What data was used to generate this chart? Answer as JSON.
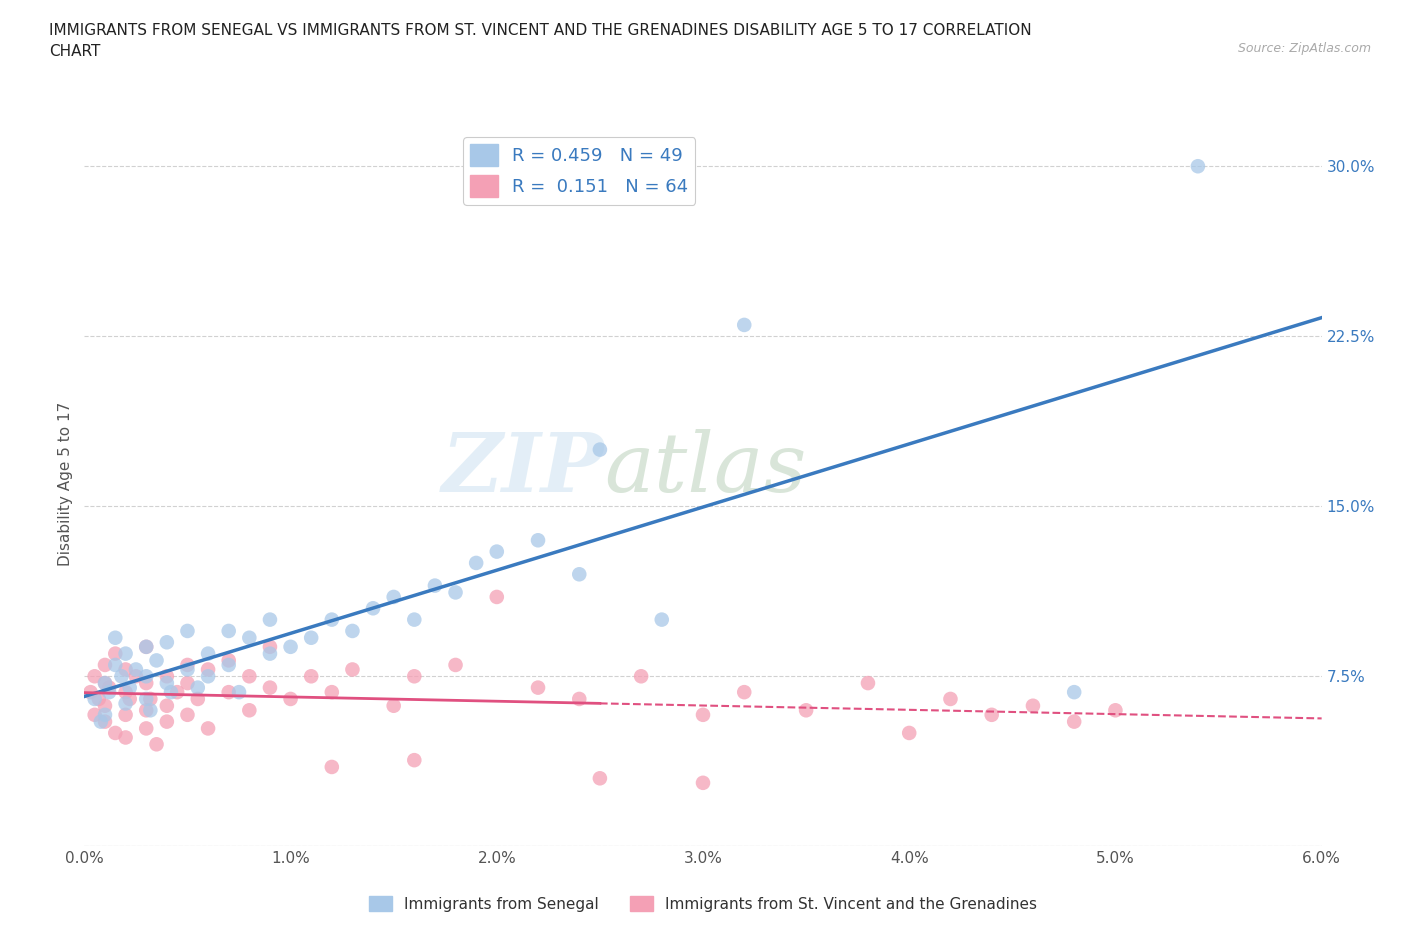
{
  "title": "IMMIGRANTS FROM SENEGAL VS IMMIGRANTS FROM ST. VINCENT AND THE GRENADINES DISABILITY AGE 5 TO 17 CORRELATION\nCHART",
  "source_text": "Source: ZipAtlas.com",
  "ylabel": "Disability Age 5 to 17",
  "xlim": [
    0.0,
    0.06
  ],
  "ylim": [
    0.0,
    0.32
  ],
  "xtick_labels": [
    "0.0%",
    "1.0%",
    "2.0%",
    "3.0%",
    "4.0%",
    "5.0%",
    "6.0%"
  ],
  "xtick_vals": [
    0.0,
    0.01,
    0.02,
    0.03,
    0.04,
    0.05,
    0.06
  ],
  "ytick_labels": [
    "",
    "7.5%",
    "15.0%",
    "22.5%",
    "30.0%"
  ],
  "ytick_vals": [
    0.0,
    0.075,
    0.15,
    0.225,
    0.3
  ],
  "blue_color": "#a8c8e8",
  "pink_color": "#f4a0b5",
  "blue_line_color": "#3a7abf",
  "pink_line_color": "#e05080",
  "R_blue": 0.459,
  "N_blue": 49,
  "R_pink": 0.151,
  "N_pink": 64,
  "legend_label_blue": "Immigrants from Senegal",
  "legend_label_pink": "Immigrants from St. Vincent and the Grenadines",
  "watermark_zip": "ZIP",
  "watermark_atlas": "atlas",
  "grid_color": "#cccccc",
  "background_color": "#ffffff",
  "blue_scatter_x": [
    0.0005,
    0.0008,
    0.001,
    0.001,
    0.0012,
    0.0015,
    0.0015,
    0.0018,
    0.002,
    0.002,
    0.0022,
    0.0025,
    0.003,
    0.003,
    0.003,
    0.0032,
    0.0035,
    0.004,
    0.004,
    0.0042,
    0.005,
    0.005,
    0.0055,
    0.006,
    0.006,
    0.007,
    0.007,
    0.0075,
    0.008,
    0.009,
    0.009,
    0.01,
    0.011,
    0.012,
    0.013,
    0.014,
    0.015,
    0.016,
    0.017,
    0.018,
    0.019,
    0.02,
    0.022,
    0.024,
    0.025,
    0.028,
    0.032,
    0.048,
    0.054
  ],
  "blue_scatter_y": [
    0.065,
    0.055,
    0.072,
    0.058,
    0.068,
    0.08,
    0.092,
    0.075,
    0.063,
    0.085,
    0.07,
    0.078,
    0.065,
    0.075,
    0.088,
    0.06,
    0.082,
    0.072,
    0.09,
    0.068,
    0.078,
    0.095,
    0.07,
    0.075,
    0.085,
    0.08,
    0.095,
    0.068,
    0.092,
    0.085,
    0.1,
    0.088,
    0.092,
    0.1,
    0.095,
    0.105,
    0.11,
    0.1,
    0.115,
    0.112,
    0.125,
    0.13,
    0.135,
    0.12,
    0.175,
    0.1,
    0.23,
    0.068,
    0.3
  ],
  "pink_scatter_x": [
    0.0003,
    0.0005,
    0.0005,
    0.0007,
    0.001,
    0.001,
    0.001,
    0.001,
    0.0012,
    0.0015,
    0.0015,
    0.002,
    0.002,
    0.002,
    0.002,
    0.0022,
    0.0025,
    0.003,
    0.003,
    0.003,
    0.003,
    0.0032,
    0.0035,
    0.004,
    0.004,
    0.004,
    0.0045,
    0.005,
    0.005,
    0.005,
    0.0055,
    0.006,
    0.006,
    0.007,
    0.007,
    0.008,
    0.008,
    0.009,
    0.009,
    0.01,
    0.011,
    0.012,
    0.013,
    0.015,
    0.016,
    0.018,
    0.02,
    0.022,
    0.024,
    0.027,
    0.03,
    0.032,
    0.035,
    0.038,
    0.04,
    0.042,
    0.044,
    0.046,
    0.048,
    0.05,
    0.012,
    0.016,
    0.025,
    0.03
  ],
  "pink_scatter_y": [
    0.068,
    0.075,
    0.058,
    0.065,
    0.072,
    0.055,
    0.08,
    0.062,
    0.07,
    0.05,
    0.085,
    0.058,
    0.068,
    0.078,
    0.048,
    0.065,
    0.075,
    0.06,
    0.072,
    0.052,
    0.088,
    0.065,
    0.045,
    0.062,
    0.075,
    0.055,
    0.068,
    0.058,
    0.072,
    0.08,
    0.065,
    0.052,
    0.078,
    0.068,
    0.082,
    0.06,
    0.075,
    0.088,
    0.07,
    0.065,
    0.075,
    0.068,
    0.078,
    0.062,
    0.075,
    0.08,
    0.11,
    0.07,
    0.065,
    0.075,
    0.058,
    0.068,
    0.06,
    0.072,
    0.05,
    0.065,
    0.058,
    0.062,
    0.055,
    0.06,
    0.035,
    0.038,
    0.03,
    0.028
  ]
}
